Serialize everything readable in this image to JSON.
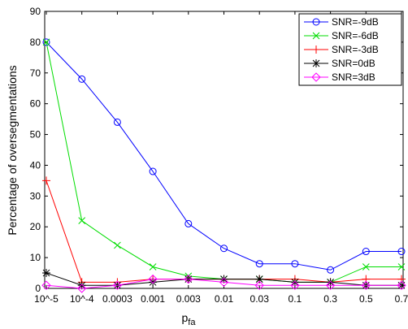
{
  "chart_data": {
    "type": "line",
    "x_label": "p",
    "x_label_sub": "fa",
    "y_label": "Percentage of oversegmentations",
    "categories": [
      "10^-5",
      "10^-4",
      "0.0003",
      "0.001",
      "0.003",
      "0.01",
      "0.03",
      "0.1",
      "0.3",
      "0.5",
      "0.7"
    ],
    "ylim": [
      0,
      90
    ],
    "yticks": [
      0,
      10,
      20,
      30,
      40,
      50,
      60,
      70,
      80,
      90
    ],
    "legend": "top-right",
    "series": [
      {
        "name": "SNR=-9dB",
        "color": "#0000ff",
        "marker": "circle",
        "values": [
          80,
          68,
          54,
          38,
          21,
          13,
          8,
          8,
          6,
          12,
          12
        ]
      },
      {
        "name": "SNR=-6dB",
        "color": "#00dd00",
        "marker": "x",
        "values": [
          80,
          22,
          14,
          7,
          4,
          3,
          3,
          2,
          2,
          7,
          7
        ]
      },
      {
        "name": "SNR=-3dB",
        "color": "#ff0000",
        "marker": "plus",
        "values": [
          35,
          2,
          2,
          3,
          3,
          3,
          3,
          3,
          2,
          3,
          3
        ]
      },
      {
        "name": "SNR=0dB",
        "color": "#000000",
        "marker": "star",
        "values": [
          5,
          1,
          1,
          2,
          3,
          3,
          3,
          2,
          2,
          1,
          1
        ]
      },
      {
        "name": "SNR=3dB",
        "color": "#ff00ff",
        "marker": "diamond",
        "values": [
          1,
          0,
          1,
          3,
          3,
          2,
          1,
          1,
          1,
          1,
          1
        ]
      }
    ]
  }
}
